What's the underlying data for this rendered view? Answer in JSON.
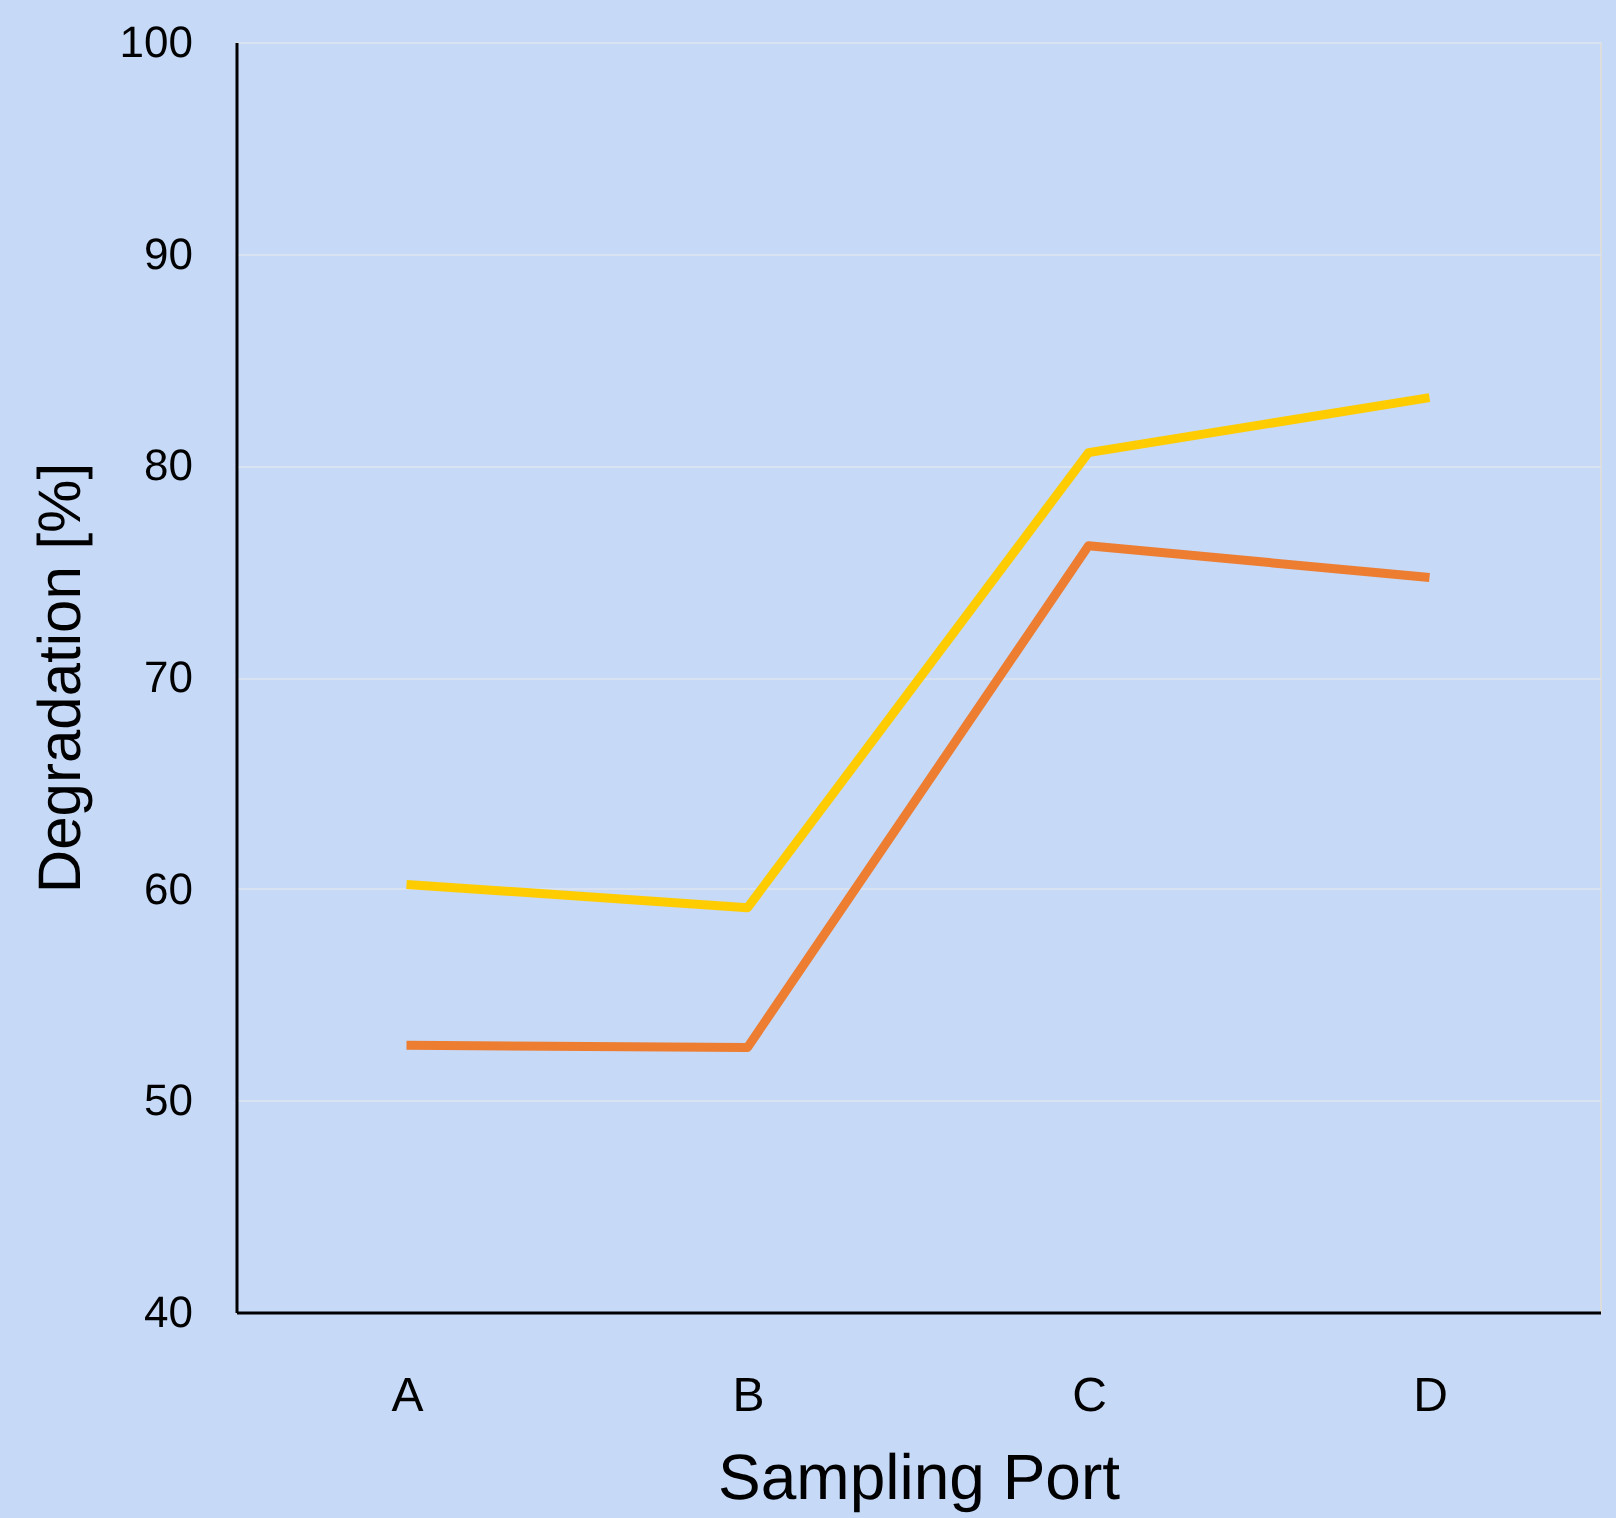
{
  "chart_data": {
    "type": "line",
    "xlabel": "Sampling Port",
    "ylabel": "Degradation [%]",
    "categories": [
      "A",
      "B",
      "C",
      "D"
    ],
    "series": [
      {
        "color": "#ffcc00",
        "values": [
          60.2,
          59.1,
          80.6,
          83.2
        ]
      },
      {
        "color": "#ed7d31",
        "values": [
          52.6,
          52.5,
          76.2,
          74.7
        ]
      }
    ],
    "ylim": [
      40,
      100
    ],
    "yticks": [
      40,
      50,
      60,
      70,
      80,
      90,
      100
    ],
    "grid": "y",
    "legend": false,
    "marker": "none",
    "line_style": "solid"
  }
}
